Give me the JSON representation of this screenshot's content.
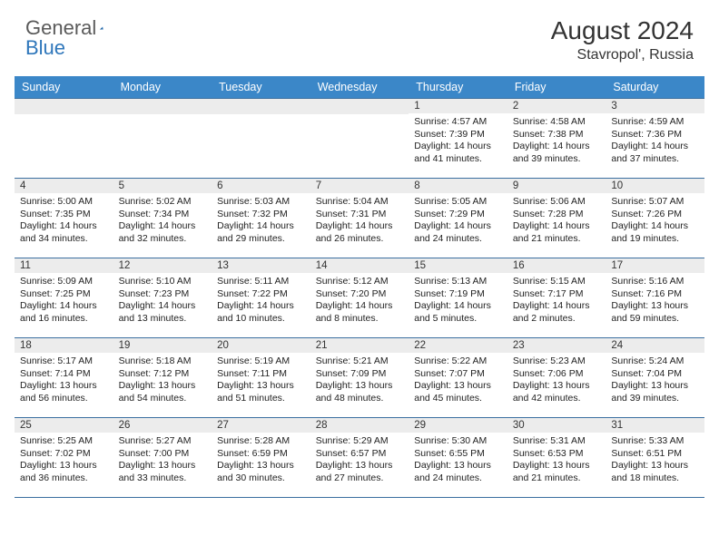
{
  "logo": {
    "text1": "General",
    "text2": "Blue",
    "tri_color": "#2f77bb"
  },
  "title": {
    "month": "August 2024",
    "location": "Stavropol', Russia"
  },
  "header_bg": "#3b87c8",
  "header_fg": "#ffffff",
  "daynum_bg": "#ececec",
  "border_color": "#3b6fa0",
  "weekdays": [
    "Sunday",
    "Monday",
    "Tuesday",
    "Wednesday",
    "Thursday",
    "Friday",
    "Saturday"
  ],
  "weeks": [
    [
      null,
      null,
      null,
      null,
      {
        "n": "1",
        "sr": "4:57 AM",
        "ss": "7:39 PM",
        "dl": "14 hours and 41 minutes."
      },
      {
        "n": "2",
        "sr": "4:58 AM",
        "ss": "7:38 PM",
        "dl": "14 hours and 39 minutes."
      },
      {
        "n": "3",
        "sr": "4:59 AM",
        "ss": "7:36 PM",
        "dl": "14 hours and 37 minutes."
      }
    ],
    [
      {
        "n": "4",
        "sr": "5:00 AM",
        "ss": "7:35 PM",
        "dl": "14 hours and 34 minutes."
      },
      {
        "n": "5",
        "sr": "5:02 AM",
        "ss": "7:34 PM",
        "dl": "14 hours and 32 minutes."
      },
      {
        "n": "6",
        "sr": "5:03 AM",
        "ss": "7:32 PM",
        "dl": "14 hours and 29 minutes."
      },
      {
        "n": "7",
        "sr": "5:04 AM",
        "ss": "7:31 PM",
        "dl": "14 hours and 26 minutes."
      },
      {
        "n": "8",
        "sr": "5:05 AM",
        "ss": "7:29 PM",
        "dl": "14 hours and 24 minutes."
      },
      {
        "n": "9",
        "sr": "5:06 AM",
        "ss": "7:28 PM",
        "dl": "14 hours and 21 minutes."
      },
      {
        "n": "10",
        "sr": "5:07 AM",
        "ss": "7:26 PM",
        "dl": "14 hours and 19 minutes."
      }
    ],
    [
      {
        "n": "11",
        "sr": "5:09 AM",
        "ss": "7:25 PM",
        "dl": "14 hours and 16 minutes."
      },
      {
        "n": "12",
        "sr": "5:10 AM",
        "ss": "7:23 PM",
        "dl": "14 hours and 13 minutes."
      },
      {
        "n": "13",
        "sr": "5:11 AM",
        "ss": "7:22 PM",
        "dl": "14 hours and 10 minutes."
      },
      {
        "n": "14",
        "sr": "5:12 AM",
        "ss": "7:20 PM",
        "dl": "14 hours and 8 minutes."
      },
      {
        "n": "15",
        "sr": "5:13 AM",
        "ss": "7:19 PM",
        "dl": "14 hours and 5 minutes."
      },
      {
        "n": "16",
        "sr": "5:15 AM",
        "ss": "7:17 PM",
        "dl": "14 hours and 2 minutes."
      },
      {
        "n": "17",
        "sr": "5:16 AM",
        "ss": "7:16 PM",
        "dl": "13 hours and 59 minutes."
      }
    ],
    [
      {
        "n": "18",
        "sr": "5:17 AM",
        "ss": "7:14 PM",
        "dl": "13 hours and 56 minutes."
      },
      {
        "n": "19",
        "sr": "5:18 AM",
        "ss": "7:12 PM",
        "dl": "13 hours and 54 minutes."
      },
      {
        "n": "20",
        "sr": "5:19 AM",
        "ss": "7:11 PM",
        "dl": "13 hours and 51 minutes."
      },
      {
        "n": "21",
        "sr": "5:21 AM",
        "ss": "7:09 PM",
        "dl": "13 hours and 48 minutes."
      },
      {
        "n": "22",
        "sr": "5:22 AM",
        "ss": "7:07 PM",
        "dl": "13 hours and 45 minutes."
      },
      {
        "n": "23",
        "sr": "5:23 AM",
        "ss": "7:06 PM",
        "dl": "13 hours and 42 minutes."
      },
      {
        "n": "24",
        "sr": "5:24 AM",
        "ss": "7:04 PM",
        "dl": "13 hours and 39 minutes."
      }
    ],
    [
      {
        "n": "25",
        "sr": "5:25 AM",
        "ss": "7:02 PM",
        "dl": "13 hours and 36 minutes."
      },
      {
        "n": "26",
        "sr": "5:27 AM",
        "ss": "7:00 PM",
        "dl": "13 hours and 33 minutes."
      },
      {
        "n": "27",
        "sr": "5:28 AM",
        "ss": "6:59 PM",
        "dl": "13 hours and 30 minutes."
      },
      {
        "n": "28",
        "sr": "5:29 AM",
        "ss": "6:57 PM",
        "dl": "13 hours and 27 minutes."
      },
      {
        "n": "29",
        "sr": "5:30 AM",
        "ss": "6:55 PM",
        "dl": "13 hours and 24 minutes."
      },
      {
        "n": "30",
        "sr": "5:31 AM",
        "ss": "6:53 PM",
        "dl": "13 hours and 21 minutes."
      },
      {
        "n": "31",
        "sr": "5:33 AM",
        "ss": "6:51 PM",
        "dl": "13 hours and 18 minutes."
      }
    ]
  ],
  "labels": {
    "sunrise": "Sunrise:",
    "sunset": "Sunset:",
    "daylight": "Daylight:"
  }
}
